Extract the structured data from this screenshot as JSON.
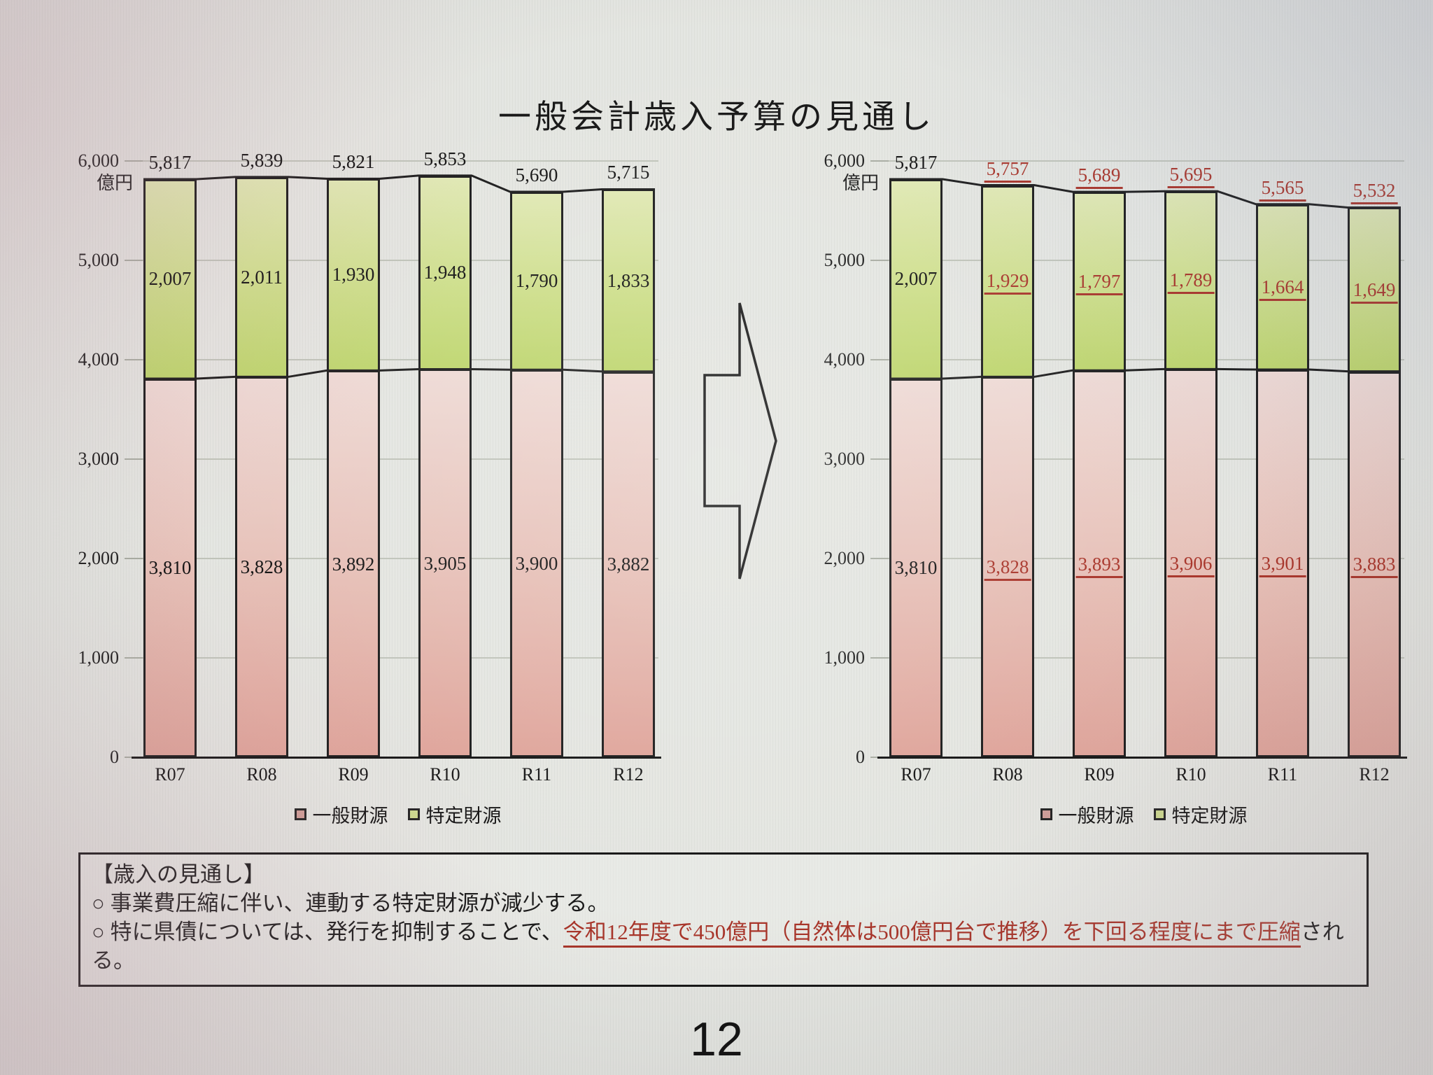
{
  "title": "一般会計歳入予算の見通し",
  "page_number": "12",
  "axis": {
    "unit": "億円",
    "max": 6000,
    "step": 1000,
    "tick_labels": [
      "6,000",
      "5,000",
      "4,000",
      "3,000",
      "2,000",
      "1,000",
      "0"
    ]
  },
  "categories": [
    "R07",
    "R08",
    "R09",
    "R10",
    "R11",
    "R12"
  ],
  "legend": [
    {
      "label": "一般財源",
      "color": "#cf9d97"
    },
    {
      "label": "特定財源",
      "color": "#ccd88e"
    }
  ],
  "chart_data": [
    {
      "type": "bar",
      "stacked": true,
      "name": "current-outlook",
      "categories": [
        "R07",
        "R08",
        "R09",
        "R10",
        "R11",
        "R12"
      ],
      "series": [
        {
          "name": "一般財源",
          "values": [
            3810,
            3828,
            3892,
            3905,
            3900,
            3882
          ],
          "labels": [
            "3,810",
            "3,828",
            "3,892",
            "3,905",
            "3,900",
            "3,882"
          ]
        },
        {
          "name": "特定財源",
          "values": [
            2007,
            2011,
            1930,
            1948,
            1790,
            1833
          ],
          "labels": [
            "2,007",
            "2,011",
            "1,930",
            "1,948",
            "1,790",
            "1,833"
          ]
        }
      ],
      "totals": [
        5817,
        5839,
        5821,
        5853,
        5690,
        5715
      ],
      "total_labels": [
        "5,817",
        "5,839",
        "5,821",
        "5,853",
        "5,690",
        "5,715"
      ],
      "highlight_from_index": -1,
      "ylim": [
        0,
        6000
      ],
      "ylabel": "億円",
      "legend_position": "bottom"
    },
    {
      "type": "bar",
      "stacked": true,
      "name": "compressed-projection",
      "categories": [
        "R07",
        "R08",
        "R09",
        "R10",
        "R11",
        "R12"
      ],
      "series": [
        {
          "name": "一般財源",
          "values": [
            3810,
            3828,
            3893,
            3906,
            3901,
            3883
          ],
          "labels": [
            "3,810",
            "3,828",
            "3,893",
            "3,906",
            "3,901",
            "3,883"
          ]
        },
        {
          "name": "特定財源",
          "values": [
            2007,
            1929,
            1797,
            1789,
            1664,
            1649
          ],
          "labels": [
            "2,007",
            "1,929",
            "1,797",
            "1,789",
            "1,664",
            "1,649"
          ]
        }
      ],
      "totals": [
        5817,
        5757,
        5689,
        5695,
        5565,
        5532
      ],
      "total_labels": [
        "5,817",
        "5,757",
        "5,689",
        "5,695",
        "5,565",
        "5,532"
      ],
      "highlight_from_index": 1,
      "ylim": [
        0,
        6000
      ],
      "ylabel": "億円",
      "legend_position": "bottom"
    }
  ],
  "notes": {
    "heading": "【歳入の見通し】",
    "bullet1": "○ 事業費圧縮に伴い、連動する特定財源が減少する。",
    "bullet2_prefix": "○ 特に県債については、発行を抑制することで、",
    "bullet2_highlight": "令和12年度で450億円（自然体は500億円台で推移）を下回る程度にまで圧縮",
    "bullet2_suffix": "される。"
  },
  "colors": {
    "red": "#a8352a",
    "outline": "#1c1c1c",
    "general_top": "#eedad5",
    "general_bottom": "#dfa49a",
    "specific_top": "#e0e8b4",
    "specific_bottom": "#bdd56c"
  }
}
